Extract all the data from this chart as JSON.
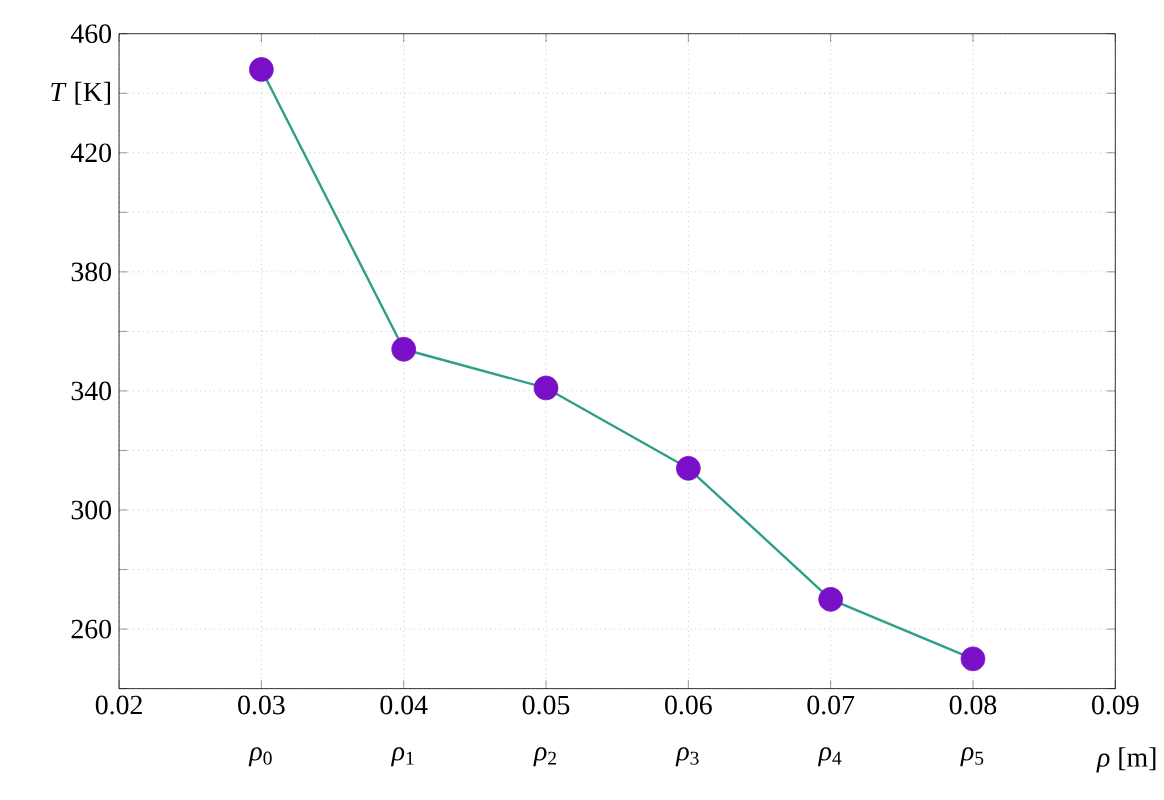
{
  "chart_data": {
    "type": "line",
    "xlabel": "*ρ* [m]",
    "ylabel": "*T* [K]",
    "x": [
      0.03,
      0.04,
      0.05,
      0.06,
      0.07,
      0.08
    ],
    "series": [
      {
        "color": "#2e9e88",
        "colors": [
          "#7a0fc8",
          "#7a0fc8",
          "#7a0fc8",
          "#7a0fc8",
          "#7a0fc8",
          "#7a0fc8"
        ],
        "values": [
          448,
          354,
          341,
          314,
          270,
          250
        ]
      }
    ],
    "xlim": [
      0.02,
      0.09
    ],
    "ylim": [
      240,
      460
    ],
    "xticks": [
      {
        "value": 0.02,
        "label": "0.02"
      },
      {
        "value": 0.03,
        "label": "0.03"
      },
      {
        "value": 0.04,
        "label": "0.04"
      },
      {
        "value": 0.05,
        "label": "0.05"
      },
      {
        "value": 0.06,
        "label": "0.06"
      },
      {
        "value": 0.07,
        "label": "0.07"
      },
      {
        "value": 0.08,
        "label": "0.08"
      },
      {
        "value": 0.09,
        "label": "0.09"
      }
    ],
    "yticks": [
      {
        "value": 240,
        "label": null
      },
      260,
      {
        "value": 280,
        "label": null
      },
      300,
      {
        "value": 320,
        "label": null
      },
      340,
      {
        "value": 360,
        "label": null
      },
      380,
      {
        "value": 400,
        "label": null
      },
      420,
      {
        "value": 440,
        "label": null
      },
      460
    ],
    "annotations": [
      "*ρ*$_{0}$",
      "*ρ*$_{1}$",
      "*ρ*$_{2}$",
      "*ρ*$_{3}$",
      "*ρ*$_{4}$",
      "*ρ*$_{5}$"
    ],
    "grid": true,
    "marker": "circle",
    "line_style": "solid"
  }
}
